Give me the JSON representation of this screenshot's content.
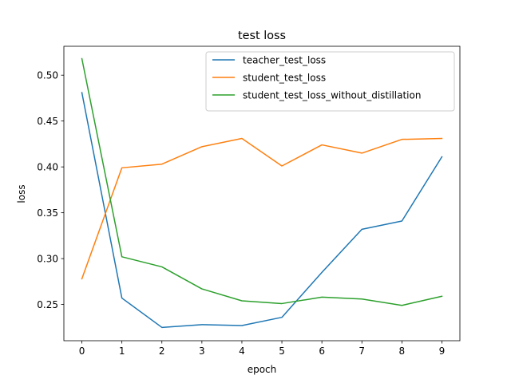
{
  "chart_data": {
    "type": "line",
    "title": "test loss",
    "xlabel": "epoch",
    "ylabel": "loss",
    "x": [
      0,
      1,
      2,
      3,
      4,
      5,
      6,
      7,
      8,
      9
    ],
    "xlim": [
      -0.45,
      9.45
    ],
    "ylim": [
      0.2105,
      0.5315
    ],
    "xticks": [
      0,
      1,
      2,
      3,
      4,
      5,
      6,
      7,
      8,
      9
    ],
    "yticks": [
      0.25,
      0.3,
      0.35,
      0.4,
      0.45,
      0.5
    ],
    "ytick_labels": [
      "0.25",
      "0.30",
      "0.35",
      "0.40",
      "0.45",
      "0.50"
    ],
    "grid": false,
    "legend": "top-right",
    "series": [
      {
        "name": "teacher_test_loss",
        "color": "#1f77b4",
        "values": [
          0.481,
          0.257,
          0.225,
          0.228,
          0.227,
          0.236,
          0.285,
          0.332,
          0.341,
          0.411
        ]
      },
      {
        "name": "student_test_loss",
        "color": "#ff7f0e",
        "values": [
          0.278,
          0.399,
          0.403,
          0.422,
          0.431,
          0.401,
          0.424,
          0.415,
          0.43,
          0.431
        ]
      },
      {
        "name": "student_test_loss_without_distillation",
        "color": "#2ca02c",
        "values": [
          0.518,
          0.302,
          0.291,
          0.267,
          0.254,
          0.251,
          0.258,
          0.256,
          0.249,
          0.259
        ]
      }
    ]
  }
}
